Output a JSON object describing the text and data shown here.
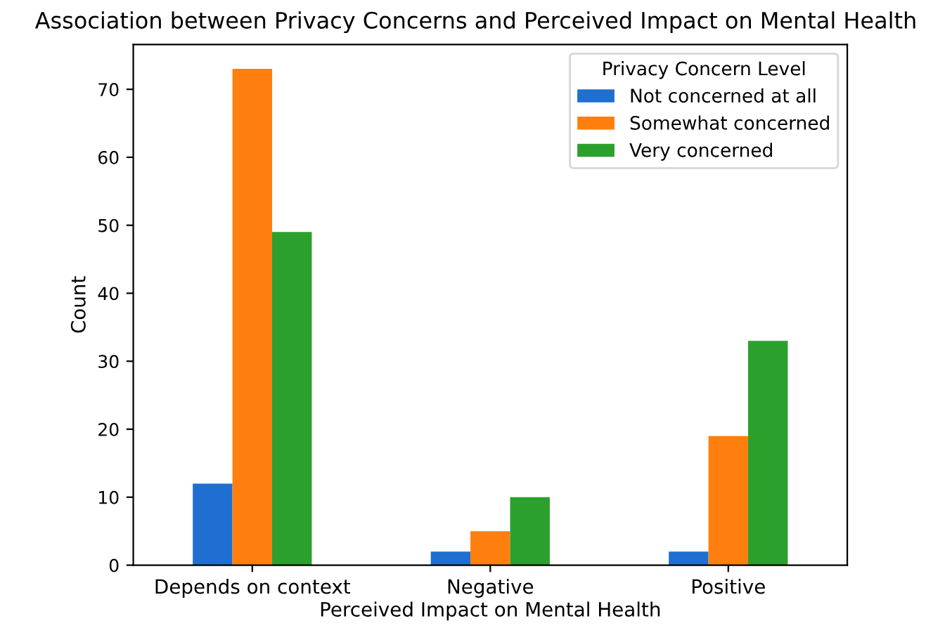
{
  "chart_data": {
    "type": "bar",
    "title": "Association between Privacy Concerns and Perceived Impact on Mental Health",
    "xlabel": "Perceived Impact on Mental Health",
    "ylabel": "Count",
    "legend_title": "Privacy Concern Level",
    "categories": [
      "Depends on context",
      "Negative",
      "Positive"
    ],
    "series": [
      {
        "name": "Not concerned at all",
        "color": "#1f6fd0",
        "values": [
          12,
          2,
          2
        ]
      },
      {
        "name": "Somewhat concerned",
        "color": "#ff7f0e",
        "values": [
          73,
          5,
          19
        ]
      },
      {
        "name": "Very concerned",
        "color": "#2ca02c",
        "values": [
          49,
          10,
          33
        ]
      }
    ],
    "ylim": [
      0,
      76.6
    ],
    "yticks": [
      0,
      10,
      20,
      30,
      40,
      50,
      60,
      70
    ],
    "legend": "top right",
    "grid": false
  }
}
